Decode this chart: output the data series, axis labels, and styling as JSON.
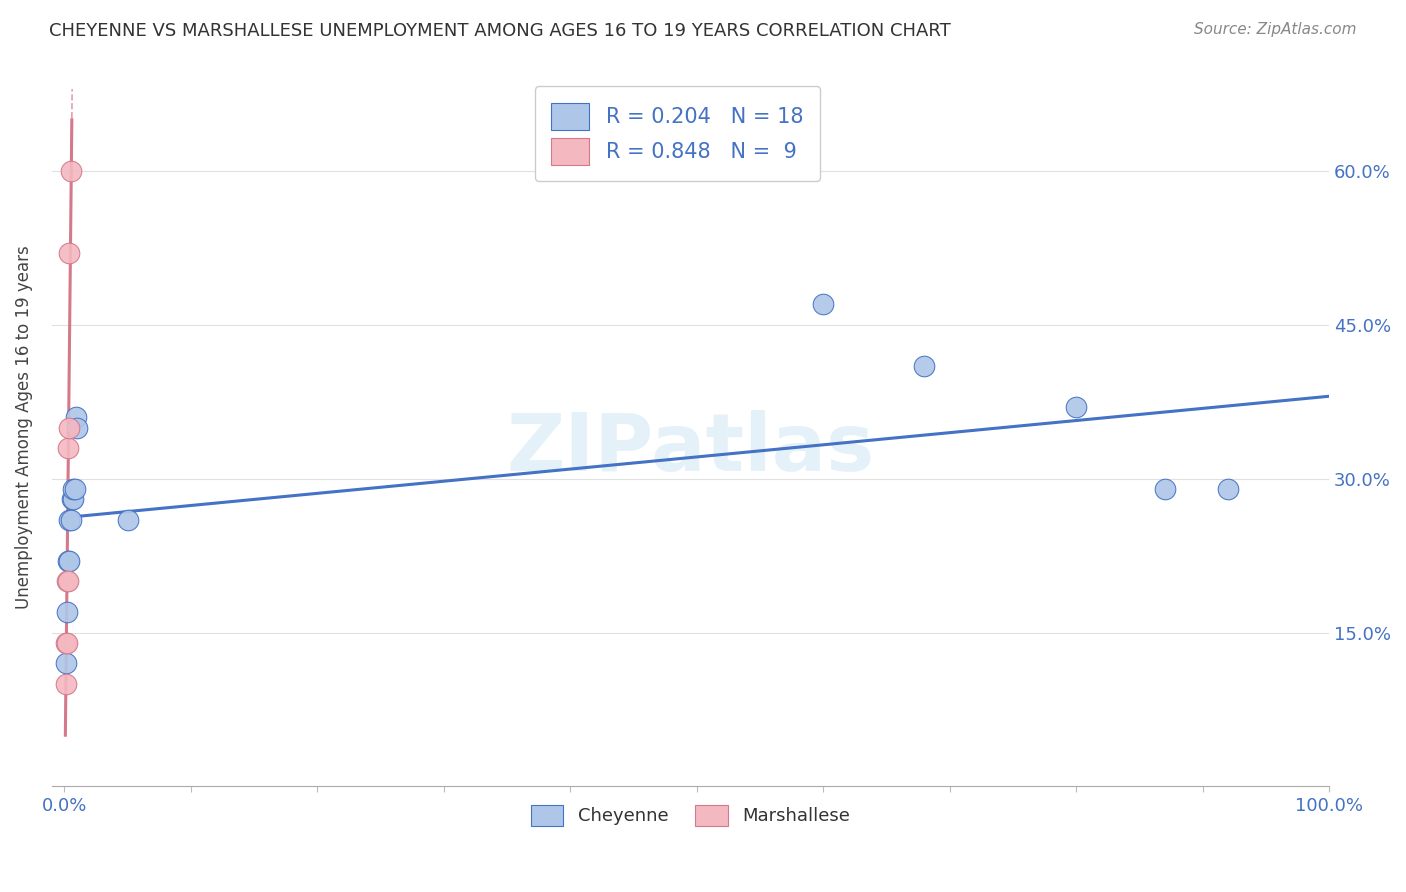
{
  "title": "CHEYENNE VS MARSHALLESE UNEMPLOYMENT AMONG AGES 16 TO 19 YEARS CORRELATION CHART",
  "source": "Source: ZipAtlas.com",
  "ylabel": "Unemployment Among Ages 16 to 19 years",
  "watermark": "ZIPatlas",
  "cheyenne_R": 0.204,
  "cheyenne_N": 18,
  "marshallese_R": 0.848,
  "marshallese_N": 9,
  "cheyenne_color": "#aec6e8",
  "cheyenne_line_color": "#4472C4",
  "marshallese_color": "#f4b8c1",
  "marshallese_line_color": "#d4788a",
  "cheyenne_x": [
    0.001,
    0.002,
    0.003,
    0.004,
    0.004,
    0.005,
    0.006,
    0.007,
    0.007,
    0.008,
    0.009,
    0.01,
    0.05,
    0.6,
    0.68,
    0.8,
    0.87,
    0.92
  ],
  "cheyenne_y": [
    0.12,
    0.17,
    0.22,
    0.22,
    0.26,
    0.26,
    0.28,
    0.28,
    0.29,
    0.29,
    0.36,
    0.35,
    0.26,
    0.47,
    0.41,
    0.37,
    0.29,
    0.29
  ],
  "marshallese_x": [
    0.001,
    0.001,
    0.002,
    0.002,
    0.003,
    0.003,
    0.004,
    0.004,
    0.005
  ],
  "marshallese_y": [
    0.1,
    0.14,
    0.14,
    0.2,
    0.2,
    0.33,
    0.35,
    0.52,
    0.6
  ],
  "xlim": [
    -0.01,
    1.0
  ],
  "ylim": [
    0.0,
    0.7
  ],
  "yticks": [
    0.15,
    0.3,
    0.45,
    0.6
  ],
  "ytick_labels": [
    "15.0%",
    "30.0%",
    "45.0%",
    "60.0%"
  ],
  "cheyenne_trendline_start": 0.31,
  "cheyenne_trendline_end": 0.42,
  "title_color": "#333333",
  "axis_color": "#4472C4",
  "grid_color": "#e0e0e0",
  "background_color": "#ffffff"
}
